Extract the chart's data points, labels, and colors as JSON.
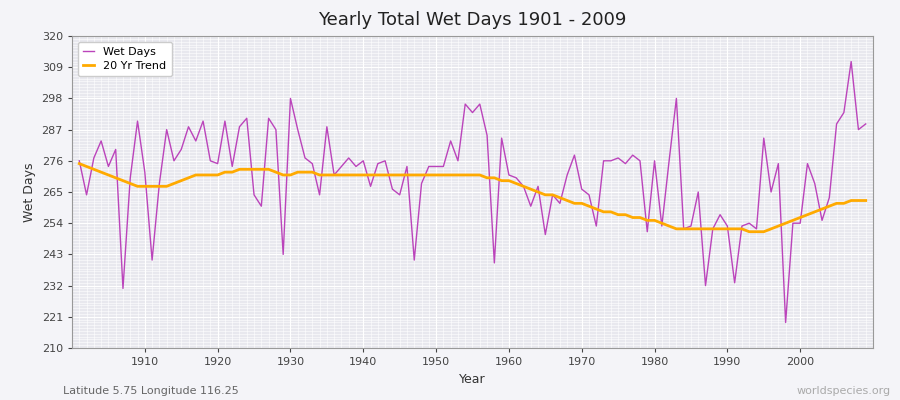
{
  "title": "Yearly Total Wet Days 1901 - 2009",
  "xlabel": "Year",
  "ylabel": "Wet Days",
  "subtitle": "Latitude 5.75 Longitude 116.25",
  "watermark": "worldspecies.org",
  "line_color": "#bb44bb",
  "trend_color": "#ffaa00",
  "bg_color": "#e8e8ee",
  "fig_color": "#f4f4f8",
  "grid_color": "#ffffff",
  "ylim": [
    210,
    320
  ],
  "yticks": [
    210,
    221,
    232,
    243,
    254,
    265,
    276,
    287,
    298,
    309,
    320
  ],
  "years": [
    1901,
    1902,
    1903,
    1904,
    1905,
    1906,
    1907,
    1908,
    1909,
    1910,
    1911,
    1912,
    1913,
    1914,
    1915,
    1916,
    1917,
    1918,
    1919,
    1920,
    1921,
    1922,
    1923,
    1924,
    1925,
    1926,
    1927,
    1928,
    1929,
    1930,
    1931,
    1932,
    1933,
    1934,
    1935,
    1936,
    1937,
    1938,
    1939,
    1940,
    1941,
    1942,
    1943,
    1944,
    1945,
    1946,
    1947,
    1948,
    1949,
    1950,
    1951,
    1952,
    1953,
    1954,
    1955,
    1956,
    1957,
    1958,
    1959,
    1960,
    1961,
    1962,
    1963,
    1964,
    1965,
    1966,
    1967,
    1968,
    1969,
    1970,
    1971,
    1972,
    1973,
    1974,
    1975,
    1976,
    1977,
    1978,
    1979,
    1980,
    1981,
    1982,
    1983,
    1984,
    1985,
    1986,
    1987,
    1988,
    1989,
    1990,
    1991,
    1992,
    1993,
    1994,
    1995,
    1996,
    1997,
    1998,
    1999,
    2000,
    2001,
    2002,
    2003,
    2004,
    2005,
    2006,
    2007,
    2008,
    2009
  ],
  "wet_days": [
    276,
    264,
    277,
    283,
    274,
    280,
    231,
    270,
    290,
    272,
    241,
    268,
    287,
    276,
    280,
    288,
    283,
    290,
    276,
    275,
    290,
    274,
    288,
    291,
    264,
    260,
    291,
    287,
    243,
    298,
    287,
    277,
    275,
    264,
    288,
    271,
    274,
    277,
    274,
    276,
    267,
    275,
    276,
    266,
    264,
    274,
    241,
    268,
    274,
    274,
    274,
    283,
    276,
    296,
    293,
    296,
    285,
    240,
    284,
    271,
    270,
    267,
    260,
    267,
    250,
    264,
    261,
    271,
    278,
    266,
    264,
    253,
    276,
    276,
    277,
    275,
    278,
    276,
    251,
    276,
    253,
    276,
    298,
    252,
    253,
    265,
    232,
    252,
    257,
    253,
    233,
    253,
    254,
    252,
    284,
    265,
    275,
    219,
    254,
    254,
    275,
    268,
    255,
    263,
    289,
    293,
    311,
    287,
    289
  ],
  "trend": [
    275,
    274,
    273,
    272,
    271,
    270,
    269,
    268,
    267,
    267,
    267,
    267,
    267,
    268,
    269,
    270,
    271,
    271,
    271,
    271,
    272,
    272,
    273,
    273,
    273,
    273,
    273,
    272,
    271,
    271,
    272,
    272,
    272,
    271,
    271,
    271,
    271,
    271,
    271,
    271,
    271,
    271,
    271,
    271,
    271,
    271,
    271,
    271,
    271,
    271,
    271,
    271,
    271,
    271,
    271,
    271,
    270,
    270,
    269,
    269,
    268,
    267,
    266,
    265,
    264,
    264,
    263,
    262,
    261,
    261,
    260,
    259,
    258,
    258,
    257,
    257,
    256,
    256,
    255,
    255,
    254,
    253,
    252,
    252,
    252,
    252,
    252,
    252,
    252,
    252,
    252,
    252,
    251,
    251,
    251,
    252,
    253,
    254,
    255,
    256,
    257,
    258,
    259,
    260,
    261,
    261,
    262,
    262,
    262
  ]
}
